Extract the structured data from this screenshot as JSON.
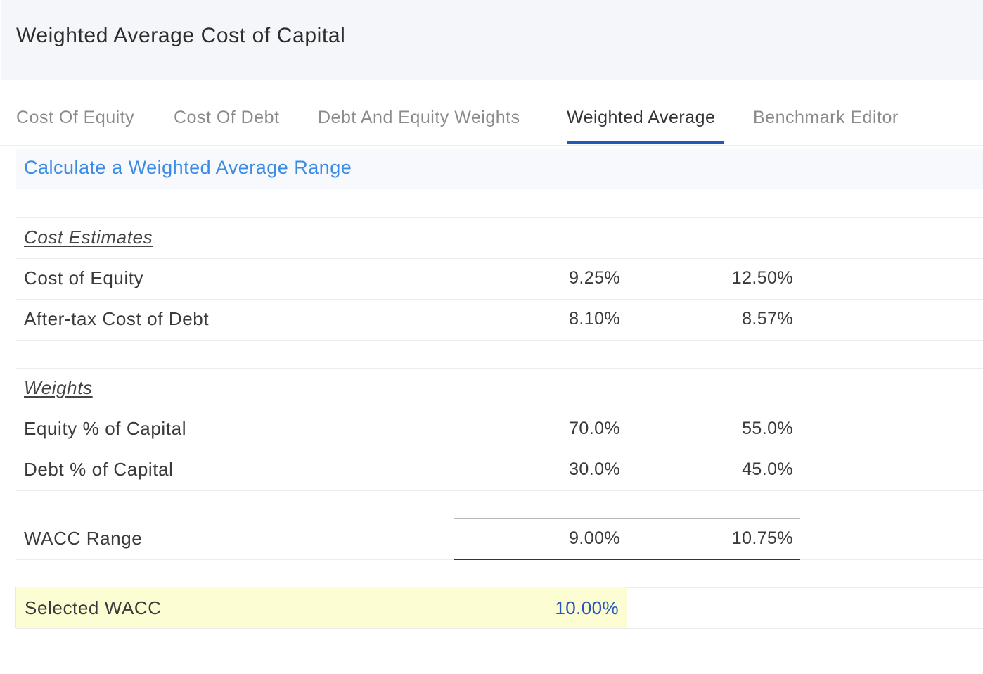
{
  "header": {
    "title": "Weighted Average Cost of Capital"
  },
  "tabs": [
    {
      "label": "Cost Of Equity",
      "active": false
    },
    {
      "label": "Cost Of Debt",
      "active": false
    },
    {
      "label": "Debt And Equity Weights",
      "active": false
    },
    {
      "label": "Weighted Average",
      "active": true
    },
    {
      "label": "Benchmark Editor",
      "active": false
    }
  ],
  "section": {
    "title": "Calculate a Weighted Average Range"
  },
  "cost_estimates": {
    "heading": "Cost Estimates",
    "rows": [
      {
        "label": "Cost of Equity",
        "low": "9.25%",
        "high": "12.50%"
      },
      {
        "label": "After-tax Cost of Debt",
        "low": "8.10%",
        "high": "8.57%"
      }
    ]
  },
  "weights": {
    "heading": "Weights",
    "rows": [
      {
        "label": "Equity % of Capital",
        "low": "70.0%",
        "high": "55.0%"
      },
      {
        "label": "Debt % of Capital",
        "low": "30.0%",
        "high": "45.0%"
      }
    ]
  },
  "wacc_range": {
    "label": "WACC Range",
    "low": "9.00%",
    "high": "10.75%"
  },
  "selected_wacc": {
    "label": "Selected WACC",
    "value": "10.00%"
  },
  "colors": {
    "accent": "#2457b8",
    "section_title": "#3a8be8",
    "highlight": "#fdfdd4"
  }
}
